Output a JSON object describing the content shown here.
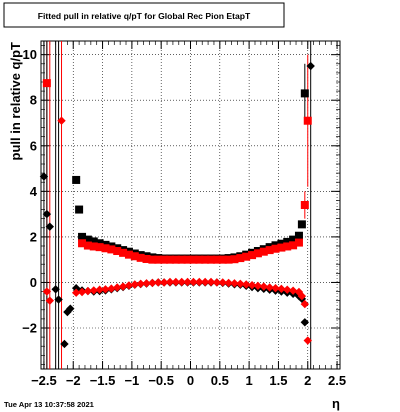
{
  "chart_data": {
    "type": "scatter",
    "title": "Fitted pull in relative q/pT for Global Rec Pion EtapT",
    "xlabel": "η",
    "ylabel": "pull in relative q/pT",
    "xlim": [
      -2.55,
      2.55
    ],
    "ylim": [
      -3.8,
      10.6
    ],
    "x_ticks": [
      -2.5,
      -2,
      -1.5,
      -1,
      -0.5,
      0,
      0.5,
      1,
      1.5,
      2,
      2.5
    ],
    "x_tick_labels": [
      "−2.5",
      "−2",
      "−1.5",
      "−1",
      "−0.5",
      "0",
      "0.5",
      "1",
      "1.5",
      "2",
      "2.5"
    ],
    "y_ticks": [
      -2,
      0,
      2,
      4,
      6,
      8,
      10
    ],
    "y_tick_labels": [
      "−2",
      "0",
      "2",
      "4",
      "6",
      "8",
      "10"
    ],
    "grid": true,
    "series": [
      {
        "color": "#000000",
        "marker": "square",
        "points": [
          [
            -1.95,
            4.5
          ],
          [
            -1.9,
            3.2
          ],
          [
            -1.85,
            2.0
          ],
          [
            -1.75,
            1.88
          ],
          [
            -1.65,
            1.8
          ],
          [
            -1.55,
            1.72
          ],
          [
            -1.45,
            1.65
          ],
          [
            -1.35,
            1.58
          ],
          [
            -1.25,
            1.5
          ],
          [
            -1.15,
            1.42
          ],
          [
            -1.05,
            1.35
          ],
          [
            -0.95,
            1.27
          ],
          [
            -0.85,
            1.2
          ],
          [
            -0.75,
            1.15
          ],
          [
            -0.65,
            1.1
          ],
          [
            -0.55,
            1.07
          ],
          [
            -0.45,
            1.05
          ],
          [
            -0.35,
            1.05
          ],
          [
            -0.25,
            1.05
          ],
          [
            -0.15,
            1.05
          ],
          [
            -0.05,
            1.05
          ],
          [
            0.05,
            1.05
          ],
          [
            0.15,
            1.05
          ],
          [
            0.25,
            1.05
          ],
          [
            0.35,
            1.05
          ],
          [
            0.45,
            1.05
          ],
          [
            0.55,
            1.05
          ],
          [
            0.65,
            1.07
          ],
          [
            0.75,
            1.1
          ],
          [
            0.85,
            1.15
          ],
          [
            0.95,
            1.22
          ],
          [
            1.05,
            1.3
          ],
          [
            1.15,
            1.38
          ],
          [
            1.25,
            1.46
          ],
          [
            1.35,
            1.55
          ],
          [
            1.45,
            1.63
          ],
          [
            1.55,
            1.7
          ],
          [
            1.65,
            1.78
          ],
          [
            1.75,
            1.88
          ],
          [
            1.85,
            2.05
          ],
          [
            1.9,
            2.55
          ],
          [
            1.95,
            8.3
          ]
        ]
      },
      {
        "color": "#ff0000",
        "marker": "square",
        "points": [
          [
            -2.45,
            8.75
          ],
          [
            -1.85,
            1.72
          ],
          [
            -1.75,
            1.62
          ],
          [
            -1.65,
            1.58
          ],
          [
            -1.55,
            1.55
          ],
          [
            -1.45,
            1.5
          ],
          [
            -1.35,
            1.45
          ],
          [
            -1.25,
            1.38
          ],
          [
            -1.15,
            1.3
          ],
          [
            -1.05,
            1.22
          ],
          [
            -0.95,
            1.15
          ],
          [
            -0.85,
            1.08
          ],
          [
            -0.75,
            1.03
          ],
          [
            -0.65,
            1.0
          ],
          [
            -0.55,
            1.0
          ],
          [
            -0.45,
            1.0
          ],
          [
            -0.35,
            1.0
          ],
          [
            -0.25,
            1.0
          ],
          [
            -0.15,
            1.0
          ],
          [
            -0.05,
            1.0
          ],
          [
            0.05,
            1.0
          ],
          [
            0.15,
            1.0
          ],
          [
            0.25,
            1.0
          ],
          [
            0.35,
            1.0
          ],
          [
            0.45,
            1.0
          ],
          [
            0.55,
            1.0
          ],
          [
            0.65,
            1.0
          ],
          [
            0.75,
            1.02
          ],
          [
            0.85,
            1.07
          ],
          [
            0.95,
            1.13
          ],
          [
            1.05,
            1.2
          ],
          [
            1.15,
            1.28
          ],
          [
            1.25,
            1.35
          ],
          [
            1.35,
            1.42
          ],
          [
            1.45,
            1.48
          ],
          [
            1.55,
            1.53
          ],
          [
            1.65,
            1.58
          ],
          [
            1.75,
            1.63
          ],
          [
            1.85,
            1.75
          ],
          [
            1.95,
            3.4
          ],
          [
            2.0,
            7.1
          ]
        ]
      },
      {
        "color": "#000000",
        "marker": "diamond",
        "points": [
          [
            -2.5,
            4.65
          ],
          [
            -2.45,
            3.0
          ],
          [
            -2.4,
            2.45
          ],
          [
            -2.3,
            -0.3
          ],
          [
            -2.25,
            -0.75
          ],
          [
            -2.15,
            -2.7
          ],
          [
            -2.1,
            -1.3
          ],
          [
            -2.05,
            -1.15
          ],
          [
            -1.95,
            -0.25
          ],
          [
            -1.85,
            -0.35
          ],
          [
            -1.75,
            -0.38
          ],
          [
            -1.65,
            -0.4
          ],
          [
            -1.55,
            -0.38
          ],
          [
            -1.45,
            -0.35
          ],
          [
            -1.35,
            -0.3
          ],
          [
            -1.25,
            -0.25
          ],
          [
            -1.15,
            -0.2
          ],
          [
            -1.05,
            -0.15
          ],
          [
            -0.95,
            -0.1
          ],
          [
            -0.85,
            -0.07
          ],
          [
            -0.75,
            -0.05
          ],
          [
            -0.65,
            -0.02
          ],
          [
            -0.55,
            0.0
          ],
          [
            -0.45,
            0.0
          ],
          [
            -0.35,
            0.0
          ],
          [
            -0.25,
            0.0
          ],
          [
            -0.15,
            0.0
          ],
          [
            -0.05,
            0.0
          ],
          [
            0.05,
            0.0
          ],
          [
            0.15,
            0.0
          ],
          [
            0.25,
            0.0
          ],
          [
            0.35,
            0.0
          ],
          [
            0.45,
            0.0
          ],
          [
            0.55,
            -0.02
          ],
          [
            0.65,
            -0.05
          ],
          [
            0.75,
            -0.08
          ],
          [
            0.85,
            -0.1
          ],
          [
            0.95,
            -0.15
          ],
          [
            1.05,
            -0.2
          ],
          [
            1.15,
            -0.25
          ],
          [
            1.25,
            -0.28
          ],
          [
            1.35,
            -0.32
          ],
          [
            1.45,
            -0.36
          ],
          [
            1.55,
            -0.4
          ],
          [
            1.65,
            -0.45
          ],
          [
            1.75,
            -0.5
          ],
          [
            1.85,
            -0.6
          ],
          [
            1.9,
            -0.72
          ],
          [
            1.95,
            -1.75
          ],
          [
            2.05,
            9.5
          ]
        ]
      },
      {
        "color": "#ff0000",
        "marker": "diamond",
        "points": [
          [
            -2.45,
            -0.4
          ],
          [
            -2.4,
            -0.8
          ],
          [
            -2.2,
            7.1
          ],
          [
            -1.95,
            -0.45
          ],
          [
            -1.85,
            -0.42
          ],
          [
            -1.75,
            -0.38
          ],
          [
            -1.65,
            -0.35
          ],
          [
            -1.55,
            -0.32
          ],
          [
            -1.45,
            -0.3
          ],
          [
            -1.35,
            -0.27
          ],
          [
            -1.25,
            -0.22
          ],
          [
            -1.15,
            -0.18
          ],
          [
            -1.05,
            -0.13
          ],
          [
            -0.95,
            -0.09
          ],
          [
            -0.85,
            -0.06
          ],
          [
            -0.75,
            -0.04
          ],
          [
            -0.65,
            -0.02
          ],
          [
            -0.55,
            0.0
          ],
          [
            -0.45,
            0.0
          ],
          [
            -0.35,
            0.02
          ],
          [
            -0.25,
            0.02
          ],
          [
            -0.15,
            0.02
          ],
          [
            -0.05,
            0.02
          ],
          [
            0.05,
            0.02
          ],
          [
            0.15,
            0.02
          ],
          [
            0.25,
            0.02
          ],
          [
            0.35,
            0.02
          ],
          [
            0.45,
            0.0
          ],
          [
            0.55,
            0.0
          ],
          [
            0.65,
            -0.02
          ],
          [
            0.75,
            -0.04
          ],
          [
            0.85,
            -0.06
          ],
          [
            0.95,
            -0.09
          ],
          [
            1.05,
            -0.12
          ],
          [
            1.15,
            -0.15
          ],
          [
            1.25,
            -0.18
          ],
          [
            1.35,
            -0.22
          ],
          [
            1.45,
            -0.25
          ],
          [
            1.55,
            -0.28
          ],
          [
            1.65,
            -0.32
          ],
          [
            1.75,
            -0.36
          ],
          [
            1.85,
            -0.42
          ],
          [
            1.9,
            -0.6
          ],
          [
            1.95,
            -0.95
          ],
          [
            2.0,
            -2.55
          ]
        ]
      }
    ],
    "error_bars": [
      {
        "color": "#ff0000",
        "x": -2.45,
        "ymin": -3.8,
        "ymax": 10.6
      },
      {
        "color": "#ff0000",
        "x": -2.4,
        "ymin": -3.8,
        "ymax": 10.6
      },
      {
        "color": "#ff0000",
        "x": -2.2,
        "ymin": -3.8,
        "ymax": 10.6
      },
      {
        "color": "#000000",
        "x": -2.5,
        "ymin": -3.8,
        "ymax": 10.6
      },
      {
        "color": "#000000",
        "x": -2.45,
        "ymin": -3.8,
        "ymax": 10.6
      },
      {
        "color": "#000000",
        "x": -2.3,
        "ymin": -3.8,
        "ymax": 10.6
      },
      {
        "color": "#000000",
        "x": -2.25,
        "ymin": -3.8,
        "ymax": 10.6
      },
      {
        "color": "#000000",
        "x": 2.05,
        "ymin": -3.8,
        "ymax": 10.6
      },
      {
        "color": "#000000",
        "x": 1.95,
        "ymin": 7.0,
        "ymax": 9.6
      },
      {
        "color": "#ff0000",
        "x": 2.0,
        "ymin": 4.2,
        "ymax": 10.0
      },
      {
        "color": "#ff0000",
        "x": 1.95,
        "ymin": 2.8,
        "ymax": 4.0
      }
    ]
  },
  "timestamp": "Tue Apr 13 10:37:58 2021"
}
